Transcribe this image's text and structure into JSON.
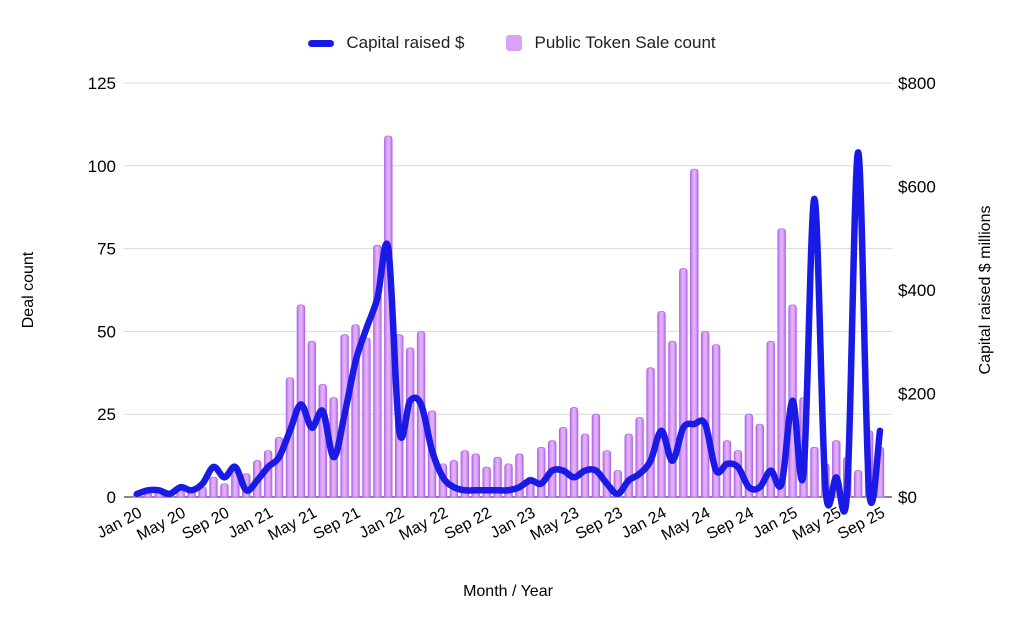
{
  "legend": {
    "capital_label": "Capital raised $",
    "token_sale_label": "Public Token Sale count"
  },
  "colors": {
    "line": "#1a1ae6",
    "bar_fill_center": "#e3b4f9",
    "bar_fill_mid": "#d9a2f6",
    "bar_edge": "#b464ea",
    "grid": "#d9d9d9",
    "axis_line": "#424242",
    "text": "#000000"
  },
  "chart_data": {
    "type": "bar",
    "combo": [
      "line",
      "bar"
    ],
    "title": "",
    "xlabel": "Month / Year",
    "ylabel_left": "Deal count",
    "ylabel_right": "Capital raised $ millions",
    "grid": "on",
    "legend_position": "top",
    "y_left_axis": {
      "min": 0,
      "max": 125,
      "tick_values": [
        0,
        25,
        50,
        75,
        100,
        125
      ],
      "tick_labels": [
        "0",
        "25",
        "50",
        "75",
        "100",
        "125"
      ]
    },
    "y_right_axis": {
      "min": 0,
      "max": 800,
      "tick_values": [
        0,
        200,
        400,
        600,
        800
      ],
      "tick_labels": [
        "$0",
        "$200",
        "$400",
        "$600",
        "$800"
      ]
    },
    "x_tick_step": 4,
    "x_tick_labels": [
      "Jan 20",
      "May 20",
      "Sep 20",
      "Jan 21",
      "May 21",
      "Sep 21",
      "Jan 22",
      "May 22",
      "Sep 22",
      "Jan 23",
      "May 23",
      "Sep 23",
      "Jan 24",
      "May 24",
      "Sep 24",
      "Jan 25",
      "May 25",
      "Sep 25"
    ],
    "months": [
      "Jan 20",
      "Feb 20",
      "Mar 20",
      "Apr 20",
      "May 20",
      "Jun 20",
      "Jul 20",
      "Aug 20",
      "Sep 20",
      "Oct 20",
      "Nov 20",
      "Dec 20",
      "Jan 21",
      "Feb 21",
      "Mar 21",
      "Apr 21",
      "May 21",
      "Jun 21",
      "Jul 21",
      "Aug 21",
      "Sep 21",
      "Oct 21",
      "Nov 21",
      "Dec 21",
      "Jan 22",
      "Feb 22",
      "Mar 22",
      "Apr 22",
      "May 22",
      "Jun 22",
      "Jul 22",
      "Aug 22",
      "Sep 22",
      "Oct 22",
      "Nov 22",
      "Dec 22",
      "Jan 23",
      "Feb 23",
      "Mar 23",
      "Apr 23",
      "May 23",
      "Jun 23",
      "Jul 23",
      "Aug 23",
      "Sep 23",
      "Oct 23",
      "Nov 23",
      "Dec 23",
      "Jan 24",
      "Feb 24",
      "Mar 24",
      "Apr 24",
      "May 24",
      "Jun 24",
      "Jul 24",
      "Aug 24",
      "Sep 24",
      "Oct 24",
      "Nov 24",
      "Dec 24",
      "Jan 25",
      "Feb 25",
      "Mar 25",
      "Apr 25",
      "May 25",
      "Jun 25",
      "Jul 25",
      "Aug 25",
      "Sep 25"
    ],
    "series": [
      {
        "name": "Public Token Sale count",
        "type": "bar",
        "axis": "left",
        "values": [
          1,
          1,
          2,
          1,
          2,
          2,
          3,
          6,
          4,
          8,
          7,
          11,
          14,
          18,
          36,
          58,
          47,
          34,
          30,
          49,
          52,
          48,
          76,
          109,
          49,
          45,
          50,
          26,
          10,
          11,
          14,
          13,
          9,
          12,
          10,
          13,
          6,
          15,
          17,
          21,
          27,
          19,
          25,
          14,
          8,
          19,
          24,
          39,
          56,
          47,
          69,
          99,
          50,
          46,
          17,
          14,
          25,
          22,
          47,
          81,
          58,
          30,
          15,
          10,
          17,
          12,
          8,
          20,
          15
        ]
      },
      {
        "name": "Capital raised $",
        "type": "line",
        "axis": "right",
        "values": [
          6,
          13,
          13,
          6,
          19,
          13,
          26,
          58,
          38,
          58,
          13,
          32,
          58,
          77,
          128,
          179,
          134,
          166,
          77,
          160,
          262,
          326,
          384,
          480,
          128,
          186,
          179,
          90,
          38,
          19,
          13,
          13,
          13,
          13,
          13,
          19,
          32,
          26,
          51,
          51,
          38,
          51,
          51,
          26,
          6,
          32,
          45,
          70,
          128,
          70,
          134,
          141,
          141,
          51,
          64,
          58,
          19,
          19,
          51,
          26,
          186,
          45,
          576,
          19,
          38,
          13,
          666,
          13,
          128
        ]
      }
    ]
  }
}
